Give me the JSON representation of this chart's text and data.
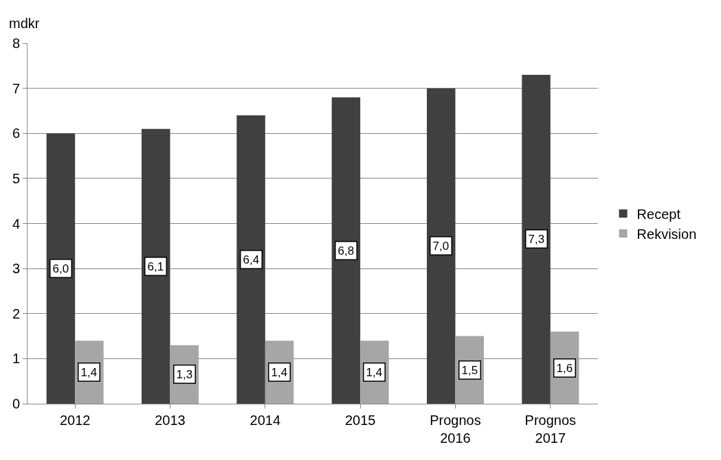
{
  "chart_data": {
    "type": "bar",
    "ylabel": "mdkr",
    "categories": [
      "2012",
      "2013",
      "2014",
      "2015",
      "Prognos 2016",
      "Prognos 2017"
    ],
    "series": [
      {
        "name": "Recept",
        "color": "#404040",
        "values": [
          6.0,
          6.1,
          6.4,
          6.8,
          7.0,
          7.3
        ],
        "value_labels": [
          "6,0",
          "6,1",
          "6,4",
          "6,8",
          "7,0",
          "7,3"
        ]
      },
      {
        "name": "Rekvision",
        "color": "#a6a6a6",
        "values": [
          1.4,
          1.3,
          1.4,
          1.4,
          1.5,
          1.6
        ],
        "value_labels": [
          "1,4",
          "1,3",
          "1,4",
          "1,4",
          "1,5",
          "1,6"
        ]
      }
    ],
    "ylim": [
      0,
      8
    ],
    "yticks": [
      0,
      1,
      2,
      3,
      4,
      5,
      6,
      7,
      8
    ],
    "grid": "y",
    "legend": "right"
  }
}
